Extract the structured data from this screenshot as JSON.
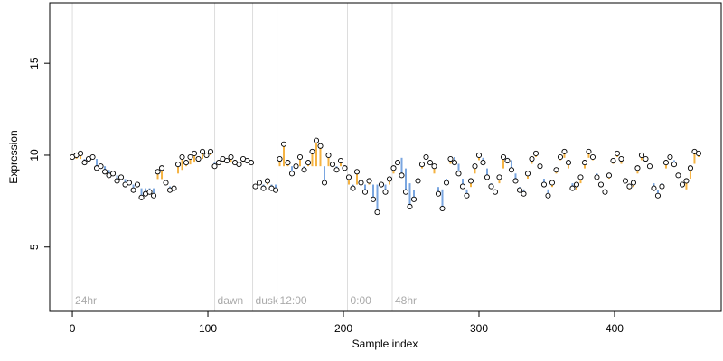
{
  "chart_data": {
    "type": "scatter",
    "xlabel": "Sample index",
    "ylabel": "Expression",
    "xlim": [
      -16.7,
      478.7
    ],
    "xticks": [
      0,
      100,
      200,
      300,
      400
    ],
    "ylim": [
      1.5,
      18.3
    ],
    "yticks": [
      5,
      10,
      15
    ],
    "above_color": "#f5b342",
    "below_color": "#7aa6e0",
    "markers": [
      {
        "x": 0,
        "label": "24hr"
      },
      {
        "x": 105,
        "label": "dawn"
      },
      {
        "x": 133,
        "label": "dusk"
      },
      {
        "x": 151,
        "label": "12:00"
      },
      {
        "x": 203,
        "label": "0:00"
      },
      {
        "x": 236,
        "label": "48hr"
      }
    ],
    "x": [
      0,
      3,
      6,
      9,
      12,
      15,
      18,
      21,
      24,
      27,
      30,
      33,
      36,
      39,
      42,
      45,
      48,
      51,
      54,
      57,
      60,
      63,
      66,
      69,
      72,
      75,
      78,
      81,
      84,
      87,
      90,
      93,
      96,
      99,
      102,
      105,
      108,
      111,
      114,
      117,
      120,
      123,
      126,
      129,
      132,
      135,
      138,
      141,
      144,
      147,
      150,
      153,
      156,
      159,
      162,
      165,
      168,
      171,
      174,
      177,
      180,
      183,
      186,
      189,
      192,
      195,
      198,
      201,
      204,
      207,
      210,
      213,
      216,
      219,
      222,
      225,
      228,
      231,
      234,
      237,
      240,
      243,
      246,
      249,
      252,
      255,
      258,
      261,
      264,
      267,
      270,
      273,
      276,
      279,
      282,
      285,
      288,
      291,
      294,
      297,
      300,
      303,
      306,
      309,
      312,
      315,
      318,
      321,
      324,
      327,
      330,
      333,
      336,
      339,
      342,
      345,
      348,
      351,
      354,
      357,
      360,
      363,
      366,
      369,
      372,
      375,
      378,
      381,
      384,
      387,
      390,
      393,
      396,
      399,
      402,
      405,
      408,
      411,
      414,
      417,
      420,
      423,
      426,
      429,
      432,
      435,
      438,
      441,
      444,
      447,
      450,
      453,
      456,
      459,
      462
    ],
    "values": [
      9.9,
      10.0,
      10.1,
      9.6,
      9.8,
      9.9,
      9.3,
      9.4,
      9.1,
      8.9,
      9.0,
      8.6,
      8.8,
      8.4,
      8.5,
      8.1,
      8.4,
      7.7,
      7.9,
      8.0,
      7.8,
      9.1,
      9.3,
      8.5,
      8.1,
      8.2,
      9.5,
      9.9,
      9.6,
      9.9,
      10.1,
      9.8,
      10.2,
      10.0,
      10.2,
      9.4,
      9.6,
      9.8,
      9.7,
      9.9,
      9.6,
      9.5,
      9.8,
      9.7,
      9.6,
      8.3,
      8.5,
      8.2,
      8.6,
      8.2,
      8.1,
      9.8,
      10.6,
      9.6,
      9.0,
      9.4,
      9.9,
      9.2,
      9.6,
      10.2,
      10.8,
      10.5,
      8.5,
      10.0,
      9.5,
      9.2,
      9.7,
      9.3,
      8.8,
      8.2,
      9.1,
      8.5,
      8.0,
      8.6,
      7.6,
      6.9,
      8.4,
      8.0,
      8.7,
      9.3,
      9.6,
      8.9,
      8.0,
      7.2,
      7.6,
      8.6,
      9.5,
      9.9,
      9.6,
      9.4,
      7.9,
      7.1,
      8.5,
      9.8,
      9.6,
      9.0,
      8.3,
      7.8,
      8.6,
      9.4,
      10.0,
      9.6,
      8.8,
      8.3,
      8.0,
      8.8,
      9.9,
      9.7,
      9.2,
      8.6,
      8.1,
      7.9,
      9.0,
      9.8,
      10.1,
      9.4,
      8.4,
      7.8,
      8.5,
      9.2,
      9.9,
      10.2,
      9.6,
      8.2,
      8.4,
      8.8,
      9.6,
      10.2,
      9.9,
      8.8,
      8.4,
      8.0,
      8.9,
      9.7,
      10.1,
      9.8,
      8.6,
      8.3,
      8.5,
      9.3,
      10.0,
      9.8,
      9.4,
      8.2,
      7.8,
      8.3,
      9.6,
      9.9,
      9.5,
      8.9,
      8.4,
      8.6,
      9.3,
      10.2,
      10.1
    ],
    "fitted": [
      9.8,
      9.8,
      9.8,
      9.8,
      9.8,
      9.8,
      9.8,
      9.5,
      9.4,
      9.2,
      9.0,
      8.9,
      8.8,
      8.7,
      8.6,
      8.4,
      8.3,
      8.2,
      8.2,
      8.2,
      8.2,
      8.7,
      8.7,
      8.5,
      8.3,
      8.3,
      9.0,
      9.2,
      9.4,
      9.5,
      9.6,
      9.7,
      9.8,
      9.9,
      10.0,
      9.6,
      9.6,
      9.6,
      9.6,
      9.6,
      9.6,
      9.6,
      9.6,
      9.6,
      9.6,
      8.4,
      8.4,
      8.4,
      8.4,
      8.4,
      8.4,
      9.4,
      9.4,
      9.4,
      9.4,
      9.4,
      9.4,
      9.4,
      9.4,
      9.4,
      9.4,
      9.4,
      9.4,
      9.4,
      9.4,
      9.4,
      9.4,
      9.4,
      8.4,
      8.4,
      8.4,
      8.4,
      8.4,
      8.4,
      8.4,
      8.4,
      8.4,
      8.4,
      8.4,
      9.0,
      9.73,
      9.86,
      9.28,
      8.47,
      8.1,
      8.47,
      9.28,
      9.86,
      9.73,
      9.0,
      8.27,
      8.14,
      8.72,
      9.53,
      9.9,
      9.53,
      8.72,
      8.14,
      8.27,
      9.0,
      9.73,
      9.86,
      9.28,
      8.47,
      8.1,
      8.47,
      9.28,
      9.86,
      9.73,
      9.0,
      8.27,
      8.14,
      8.72,
      9.53,
      9.9,
      9.53,
      8.72,
      8.14,
      8.27,
      9.0,
      9.73,
      9.86,
      9.28,
      8.47,
      8.1,
      8.47,
      9.28,
      9.86,
      9.73,
      9.0,
      8.27,
      8.14,
      8.72,
      9.53,
      9.9,
      9.53,
      8.72,
      8.14,
      8.27,
      9.0,
      9.73,
      9.86,
      9.28,
      8.47,
      8.1,
      8.47,
      9.28,
      9.86,
      9.73,
      9.0,
      8.27,
      8.14,
      8.72,
      9.53,
      9.9
    ]
  }
}
